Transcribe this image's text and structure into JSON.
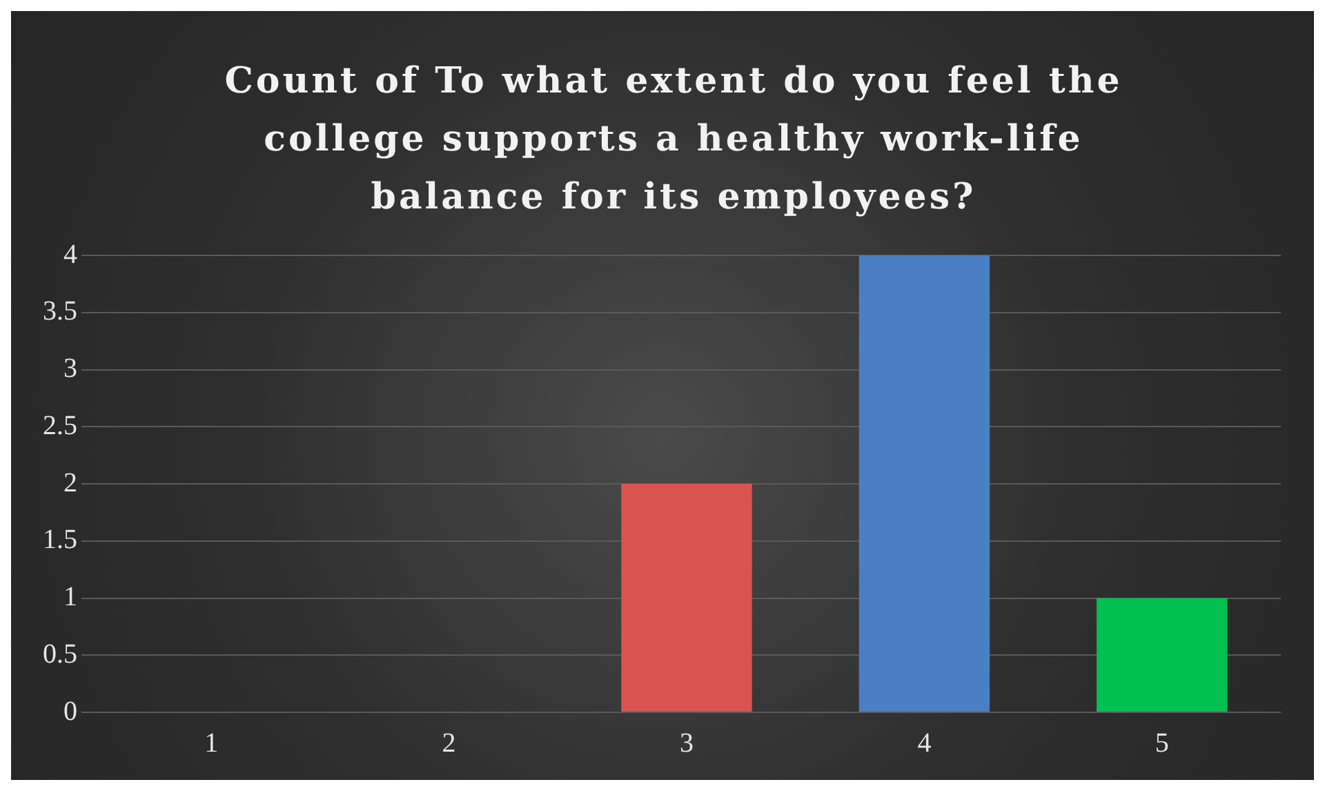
{
  "chart_data": {
    "type": "bar",
    "title": "Count of To what extent do you feel the college supports a healthy work-life balance for its employees?",
    "categories": [
      "1",
      "2",
      "3",
      "4",
      "5"
    ],
    "values": [
      0,
      0,
      2,
      4,
      1
    ],
    "colors": [
      "#6a8fd0",
      "#6a8fd0",
      "#d9534f",
      "#4a7fc4",
      "#00c050"
    ],
    "ylim": [
      0,
      4
    ],
    "yticks": [
      0,
      0.5,
      1,
      1.5,
      2,
      2.5,
      3,
      3.5,
      4
    ],
    "grid": "y",
    "legend": false
  }
}
